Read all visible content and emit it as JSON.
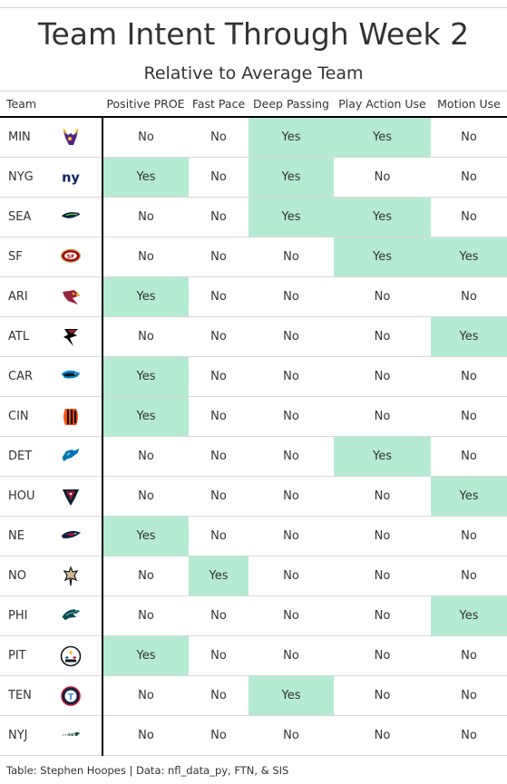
{
  "chart_data": {
    "type": "table",
    "title": "Team Intent Through Week 2",
    "subtitle": "Relative to Average Team",
    "team_header": "Team",
    "columns": [
      "Positive PROE",
      "Fast Pace",
      "Deep Passing",
      "Play Action Use",
      "Motion Use"
    ],
    "highlight_color": "#b4ebd2",
    "rows": [
      {
        "team": "MIN",
        "logo_icon": "vikings-logo-icon",
        "values": [
          "No",
          "No",
          "Yes",
          "Yes",
          "No"
        ]
      },
      {
        "team": "NYG",
        "logo_icon": "giants-logo-icon",
        "values": [
          "Yes",
          "No",
          "Yes",
          "No",
          "No"
        ]
      },
      {
        "team": "SEA",
        "logo_icon": "seahawks-logo-icon",
        "values": [
          "No",
          "No",
          "Yes",
          "Yes",
          "No"
        ]
      },
      {
        "team": "SF",
        "logo_icon": "49ers-logo-icon",
        "values": [
          "No",
          "No",
          "No",
          "Yes",
          "Yes"
        ]
      },
      {
        "team": "ARI",
        "logo_icon": "cardinals-logo-icon",
        "values": [
          "Yes",
          "No",
          "No",
          "No",
          "No"
        ]
      },
      {
        "team": "ATL",
        "logo_icon": "falcons-logo-icon",
        "values": [
          "No",
          "No",
          "No",
          "No",
          "Yes"
        ]
      },
      {
        "team": "CAR",
        "logo_icon": "panthers-logo-icon",
        "values": [
          "Yes",
          "No",
          "No",
          "No",
          "No"
        ]
      },
      {
        "team": "CIN",
        "logo_icon": "bengals-logo-icon",
        "values": [
          "Yes",
          "No",
          "No",
          "No",
          "No"
        ]
      },
      {
        "team": "DET",
        "logo_icon": "lions-logo-icon",
        "values": [
          "No",
          "No",
          "No",
          "Yes",
          "No"
        ]
      },
      {
        "team": "HOU",
        "logo_icon": "texans-logo-icon",
        "values": [
          "No",
          "No",
          "No",
          "No",
          "Yes"
        ]
      },
      {
        "team": "NE",
        "logo_icon": "patriots-logo-icon",
        "values": [
          "Yes",
          "No",
          "No",
          "No",
          "No"
        ]
      },
      {
        "team": "NO",
        "logo_icon": "saints-logo-icon",
        "values": [
          "No",
          "Yes",
          "No",
          "No",
          "No"
        ]
      },
      {
        "team": "PHI",
        "logo_icon": "eagles-logo-icon",
        "values": [
          "No",
          "No",
          "No",
          "No",
          "Yes"
        ]
      },
      {
        "team": "PIT",
        "logo_icon": "steelers-logo-icon",
        "values": [
          "Yes",
          "No",
          "No",
          "No",
          "No"
        ]
      },
      {
        "team": "TEN",
        "logo_icon": "titans-logo-icon",
        "values": [
          "No",
          "No",
          "Yes",
          "No",
          "No"
        ]
      },
      {
        "team": "NYJ",
        "logo_icon": "jets-logo-icon",
        "values": [
          "No",
          "No",
          "No",
          "No",
          "No"
        ]
      }
    ],
    "caption": "Table: Stephen Hoopes | Data: nfl_data_py, FTN, & SIS"
  }
}
